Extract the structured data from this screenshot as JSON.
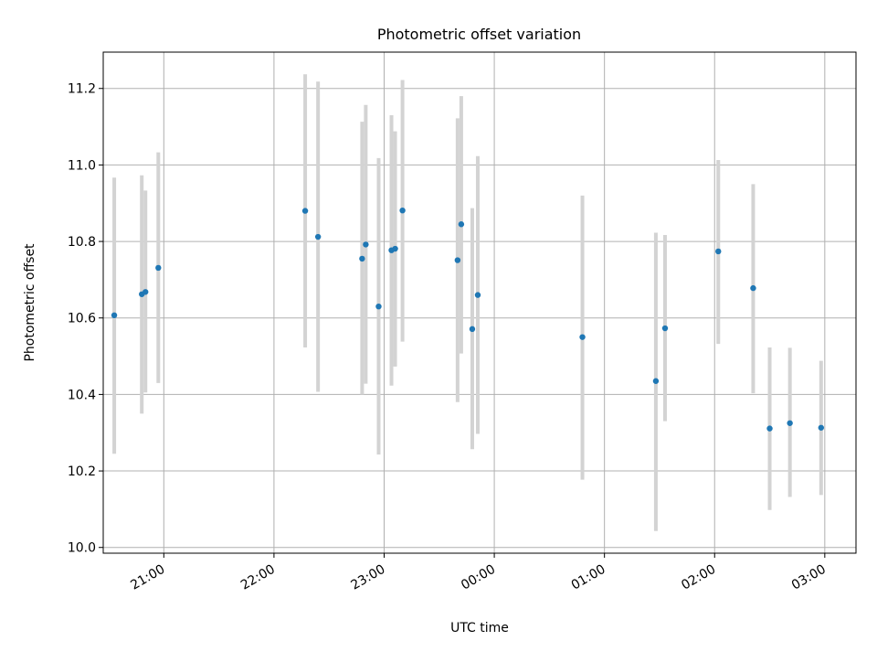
{
  "chart_data": {
    "type": "scatter",
    "title": "Photometric offset variation",
    "xlabel": "UTC time",
    "ylabel": "Photometric offset",
    "x_unit": "UTC time (hours, past midnight continues beyond 24)",
    "xlim": [
      "20:27",
      "03:17"
    ],
    "ylim": [
      9.985,
      11.295
    ],
    "xticks": [
      "21:00",
      "22:00",
      "23:00",
      "00:00",
      "01:00",
      "02:00",
      "03:00"
    ],
    "yticks": [
      "10.0",
      "10.2",
      "10.4",
      "10.6",
      "10.8",
      "11.0",
      "11.2"
    ],
    "grid": true,
    "legend": "none",
    "colors": {
      "marker": "#1f77b4",
      "errorbar": "#d3d3d3",
      "grid": "#b0b0b0",
      "axes": "#000000"
    },
    "points": [
      {
        "x": "20:33",
        "y": 10.607,
        "ylow": 10.245,
        "yhigh": 10.967
      },
      {
        "x": "20:48",
        "y": 10.662,
        "ylow": 10.35,
        "yhigh": 10.973
      },
      {
        "x": "20:50",
        "y": 10.668,
        "ylow": 10.405,
        "yhigh": 10.933
      },
      {
        "x": "20:57",
        "y": 10.731,
        "ylow": 10.43,
        "yhigh": 11.033
      },
      {
        "x": "22:17",
        "y": 10.88,
        "ylow": 10.523,
        "yhigh": 11.237
      },
      {
        "x": "22:24",
        "y": 10.812,
        "ylow": 10.407,
        "yhigh": 11.218
      },
      {
        "x": "22:48",
        "y": 10.755,
        "ylow": 10.4,
        "yhigh": 11.113
      },
      {
        "x": "22:50",
        "y": 10.792,
        "ylow": 10.428,
        "yhigh": 11.157
      },
      {
        "x": "22:57",
        "y": 10.63,
        "ylow": 10.243,
        "yhigh": 11.018
      },
      {
        "x": "23:04",
        "y": 10.777,
        "ylow": 10.423,
        "yhigh": 11.13
      },
      {
        "x": "23:06",
        "y": 10.781,
        "ylow": 10.473,
        "yhigh": 11.088
      },
      {
        "x": "23:10",
        "y": 10.881,
        "ylow": 10.538,
        "yhigh": 11.222
      },
      {
        "x": "23:40",
        "y": 10.751,
        "ylow": 10.38,
        "yhigh": 11.122
      },
      {
        "x": "23:42",
        "y": 10.845,
        "ylow": 10.507,
        "yhigh": 11.18
      },
      {
        "x": "23:48",
        "y": 10.571,
        "ylow": 10.257,
        "yhigh": 10.887
      },
      {
        "x": "23:51",
        "y": 10.66,
        "ylow": 10.297,
        "yhigh": 11.023
      },
      {
        "x": "00:48",
        "y": 10.55,
        "ylow": 10.177,
        "yhigh": 10.92
      },
      {
        "x": "01:28",
        "y": 10.435,
        "ylow": 10.043,
        "yhigh": 10.823
      },
      {
        "x": "01:33",
        "y": 10.573,
        "ylow": 10.33,
        "yhigh": 10.817
      },
      {
        "x": "02:02",
        "y": 10.774,
        "ylow": 10.532,
        "yhigh": 11.013
      },
      {
        "x": "02:21",
        "y": 10.678,
        "ylow": 10.403,
        "yhigh": 10.95
      },
      {
        "x": "02:30",
        "y": 10.311,
        "ylow": 10.098,
        "yhigh": 10.523
      },
      {
        "x": "02:41",
        "y": 10.325,
        "ylow": 10.132,
        "yhigh": 10.522
      },
      {
        "x": "02:58",
        "y": 10.313,
        "ylow": 10.137,
        "yhigh": 10.488
      }
    ]
  }
}
